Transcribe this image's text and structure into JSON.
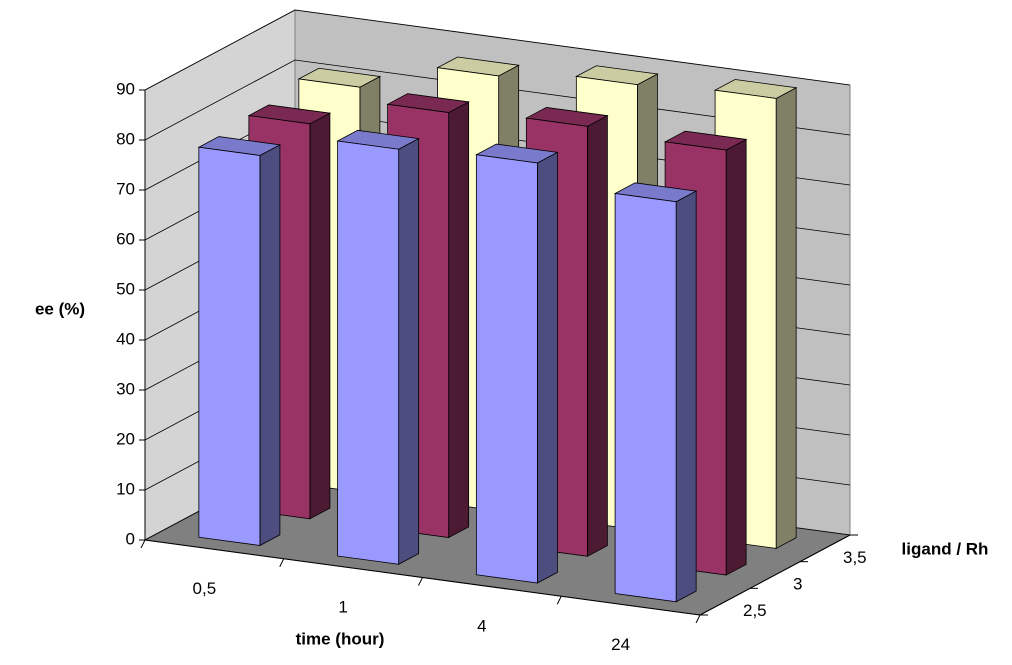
{
  "chart_data": {
    "type": "bar3d",
    "categories": [
      "0,5",
      "1",
      "4",
      "24"
    ],
    "x_label": "time (hour)",
    "y_label": "ee (%)",
    "z_label": "ligand / Rh",
    "series": [
      {
        "name": "2,5",
        "color": "#9999ff",
        "values": [
          78,
          83,
          84,
          80
        ]
      },
      {
        "name": "3",
        "color": "#993366",
        "values": [
          79,
          85,
          86,
          85
        ]
      },
      {
        "name": "3,5",
        "color": "#ffffcc",
        "values": [
          81,
          87,
          89,
          90
        ]
      }
    ],
    "ylim": [
      0,
      90
    ],
    "yticks": [
      0,
      10,
      20,
      30,
      40,
      50,
      60,
      70,
      80,
      90
    ],
    "grid": true
  }
}
